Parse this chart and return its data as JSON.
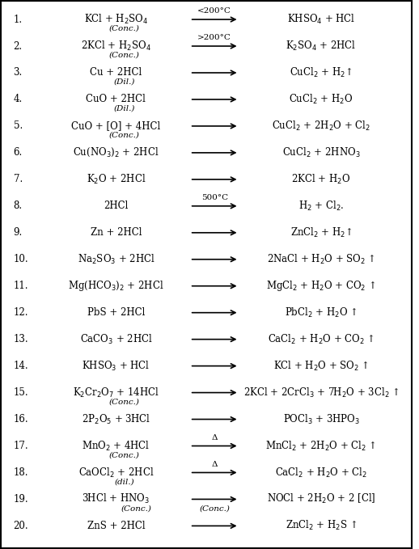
{
  "bg_color": "#ffffff",
  "text_color": "#000000",
  "figsize": [
    5.18,
    6.79
  ],
  "dpi": 100,
  "rows": [
    {
      "num": "1.",
      "reactants": "KCl + H$_2$SO$_4$",
      "arrow": "⟶",
      "arrow_label": "<200°C",
      "products": "KHSO$_4$ + HCl",
      "sub1": "(Conc.)",
      "sub2": ""
    },
    {
      "num": "2.",
      "reactants": "2KCl + H$_2$SO$_4$",
      "arrow": "⟶",
      "arrow_label": ">200°C",
      "products": "K$_2$SO$_4$ + 2HCl",
      "sub1": "(Conc.)",
      "sub2": ""
    },
    {
      "num": "3.",
      "reactants": "Cu + 2HCl",
      "arrow": "⟶",
      "arrow_label": "",
      "products": "CuCl$_2$ + H$_2$↑",
      "sub1": "(Dil.)",
      "sub2": ""
    },
    {
      "num": "4.",
      "reactants": "CuO + 2HCl",
      "arrow": "⟶",
      "arrow_label": "",
      "products": "CuCl$_2$ + H$_2$O",
      "sub1": "(Dil.)",
      "sub2": ""
    },
    {
      "num": "5.",
      "reactants": "CuO + [O] + 4HCl",
      "arrow": "⟶",
      "arrow_label": "",
      "products": "CuCl$_2$ + 2H$_2$O + Cl$_2$",
      "sub1": "(Conc.)",
      "sub2": ""
    },
    {
      "num": "6.",
      "reactants": "Cu(NO$_3$)$_2$ + 2HCl",
      "arrow": "⟶",
      "arrow_label": "",
      "products": "CuCl$_2$ + 2HNO$_3$",
      "sub1": "",
      "sub2": ""
    },
    {
      "num": "7.",
      "reactants": "K$_2$O + 2HCl",
      "arrow": "⟶",
      "arrow_label": "",
      "products": "2KCl + H$_2$O",
      "sub1": "",
      "sub2": ""
    },
    {
      "num": "8.",
      "reactants": "2HCl",
      "arrow": "⟶",
      "arrow_label": "500°C",
      "products": "H$_2$ + Cl$_2$.",
      "sub1": "",
      "sub2": ""
    },
    {
      "num": "9.",
      "reactants": "Zn + 2HCl",
      "arrow": "⟶",
      "arrow_label": "",
      "products": "ZnCl$_2$ + H$_2$↑",
      "sub1": "",
      "sub2": ""
    },
    {
      "num": "10.",
      "reactants": "Na$_2$SO$_3$ + 2HCl",
      "arrow": "⟶",
      "arrow_label": "",
      "products": "2NaCl + H$_2$O + SO$_2$ ↑",
      "sub1": "",
      "sub2": ""
    },
    {
      "num": "11.",
      "reactants": "Mg(HCO$_3$)$_2$ + 2HCl",
      "arrow": "⟶",
      "arrow_label": "",
      "products": "MgCl$_2$ + H$_2$O + CO$_2$ ↑",
      "sub1": "",
      "sub2": ""
    },
    {
      "num": "12.",
      "reactants": "PbS + 2HCl",
      "arrow": "⟶",
      "arrow_label": "",
      "products": "PbCl$_2$ + H$_2$O ↑",
      "sub1": "",
      "sub2": ""
    },
    {
      "num": "13.",
      "reactants": "CaCO$_3$ + 2HCl",
      "arrow": "⟶",
      "arrow_label": "",
      "products": "CaCl$_2$ + H$_2$O + CO$_2$ ↑",
      "sub1": "",
      "sub2": ""
    },
    {
      "num": "14.",
      "reactants": "KHSO$_3$ + HCl",
      "arrow": "⟶",
      "arrow_label": "",
      "products": "KCl + H$_2$O + SO$_2$ ↑",
      "sub1": "",
      "sub2": ""
    },
    {
      "num": "15.",
      "reactants": "K$_2$Cr$_2$O$_7$ + 14HCl",
      "arrow": "⟶",
      "arrow_label": "",
      "products": "2KCl + 2CrCl$_3$ + 7H$_2$O + 3Cl$_2$ ↑",
      "sub1": "(Conc.)",
      "sub2": ""
    },
    {
      "num": "16.",
      "reactants": "2P$_2$O$_5$ + 3HCl",
      "arrow": "⟶",
      "arrow_label": "",
      "products": "POCl$_3$ + 3HPO$_3$",
      "sub1": "",
      "sub2": ""
    },
    {
      "num": "17.",
      "reactants": "MnO$_2$ + 4HCl",
      "arrow": "⟶",
      "arrow_label": "Δ",
      "products": "MnCl$_2$ + 2H$_2$O + Cl$_2$ ↑",
      "sub1": "(Conc.)",
      "sub2": ""
    },
    {
      "num": "18.",
      "reactants": "CaOCl$_2$ + 2HCl",
      "arrow": "⟶",
      "arrow_label": "Δ",
      "products": "CaCl$_2$ + H$_2$O + Cl$_2$",
      "sub1": "(dil.)",
      "sub2": ""
    },
    {
      "num": "19.",
      "reactants": "3HCl + HNO$_3$",
      "arrow": "⟶",
      "arrow_label": "",
      "products": "NOCl + 2H$_2$O + 2 [Cl]",
      "sub1": "(Conc.)",
      "sub2": "(Conc.)"
    },
    {
      "num": "20.",
      "reactants": "ZnS + 2HCl",
      "arrow": "⟶",
      "arrow_label": "",
      "products": "ZnCl$_2$ + H$_2$S ↑",
      "sub1": "",
      "sub2": ""
    }
  ]
}
